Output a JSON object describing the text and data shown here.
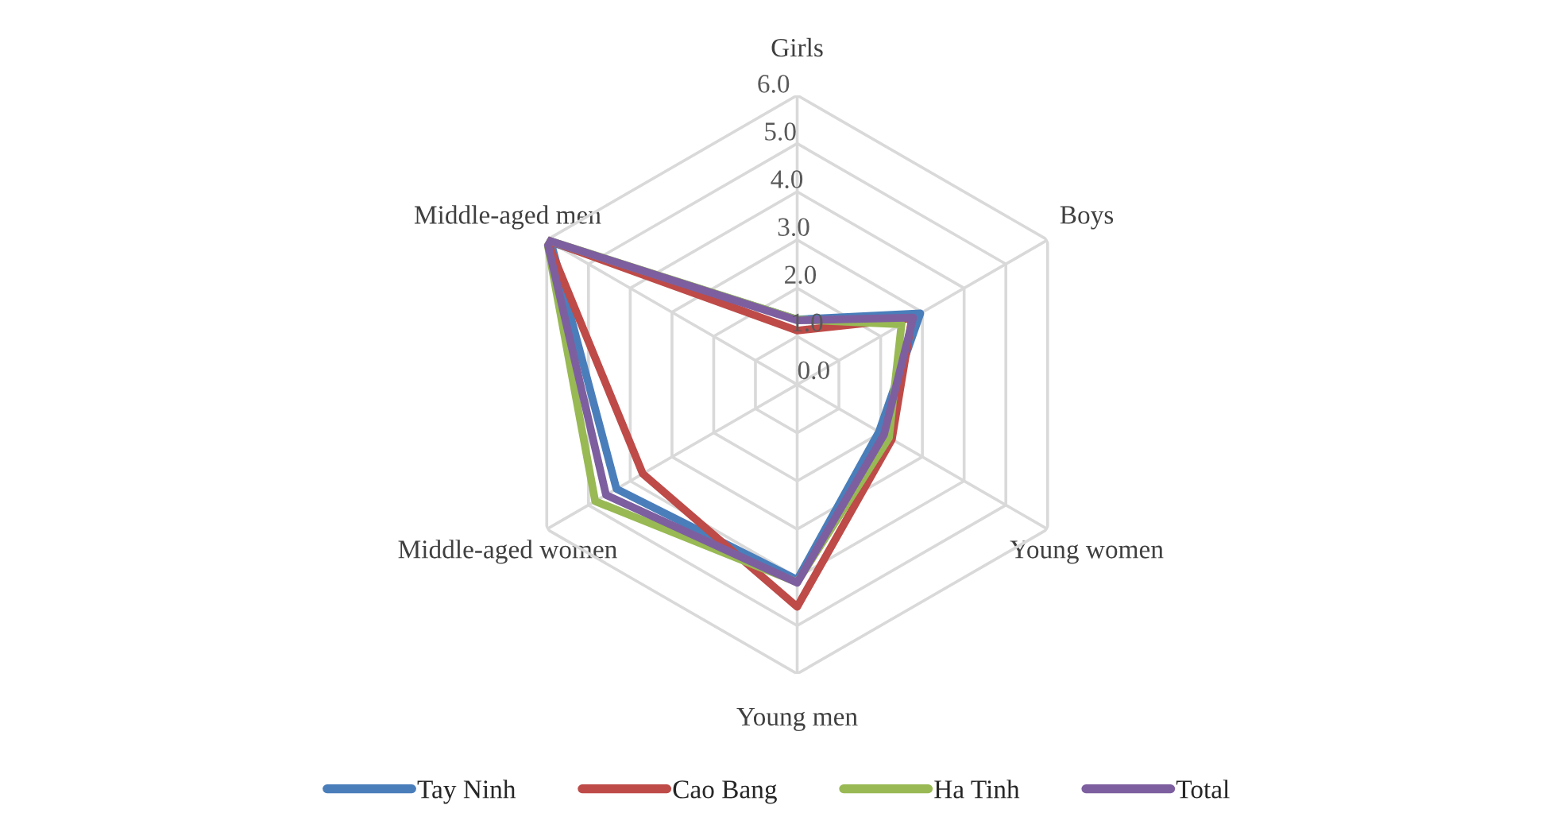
{
  "chart_data": {
    "type": "radar",
    "categories": [
      "Girls",
      "Boys",
      "Young women",
      "Young men",
      "Middle-aged women",
      "Middle-aged men"
    ],
    "series": [
      {
        "name": "Tay Ninh",
        "color": "#4a7ebb",
        "values": [
          1.35,
          2.95,
          1.96,
          4.05,
          4.33,
          5.9
        ]
      },
      {
        "name": "Cao Bang",
        "color": "#be4b48",
        "values": [
          1.12,
          2.75,
          2.27,
          4.61,
          3.7,
          6.0
        ]
      },
      {
        "name": "Ha Tinh",
        "color": "#98b954",
        "values": [
          1.35,
          2.5,
          2.2,
          4.1,
          4.84,
          6.0
        ]
      },
      {
        "name": "Total",
        "color": "#7d5fa0",
        "values": [
          1.33,
          2.78,
          2.08,
          4.11,
          4.58,
          6.0
        ]
      }
    ],
    "ylim": [
      0,
      6
    ],
    "yticks": [
      {
        "value": 0,
        "label": "0.0"
      },
      {
        "value": 1,
        "label": "1.0"
      },
      {
        "value": 2,
        "label": "2.0"
      },
      {
        "value": 3,
        "label": "3.0"
      },
      {
        "value": 4,
        "label": "4.0"
      },
      {
        "value": 5,
        "label": "5.0"
      },
      {
        "value": 6,
        "label": "6.0"
      }
    ],
    "grid": true,
    "legend": "bottom",
    "marker": "none",
    "line_style": "solid"
  }
}
